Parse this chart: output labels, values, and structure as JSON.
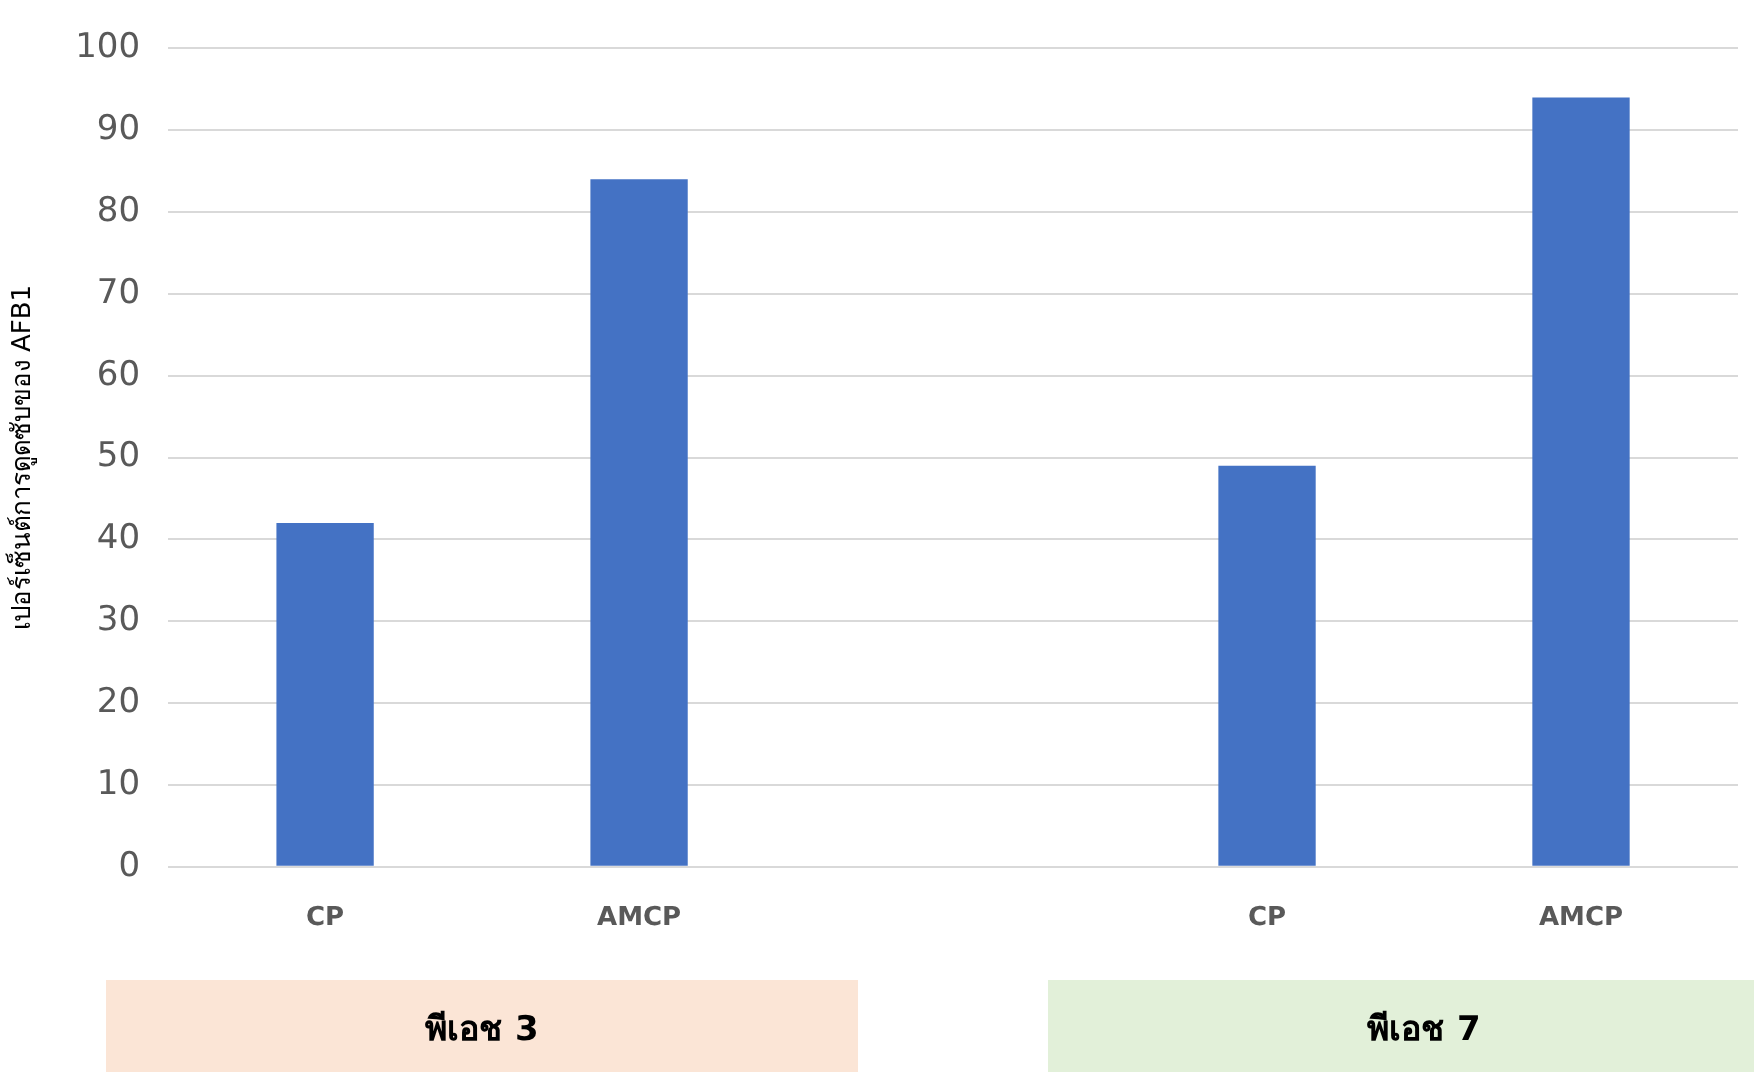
{
  "chart_data": {
    "type": "bar",
    "ylabel": "เปอร์เซ็นต์การดูดซับของ AFB1",
    "categories": [
      "CP",
      "AMCP",
      null,
      "CP",
      "AMCP"
    ],
    "values": [
      42,
      84,
      null,
      49,
      94
    ],
    "color": "#4472c4",
    "ylim": [
      0,
      100
    ],
    "yticks": [
      0,
      10,
      20,
      30,
      40,
      50,
      60,
      70,
      80,
      90,
      100
    ],
    "grid": "y",
    "annotations": [
      "พีเอช 3",
      "พีเอช 7"
    ]
  }
}
